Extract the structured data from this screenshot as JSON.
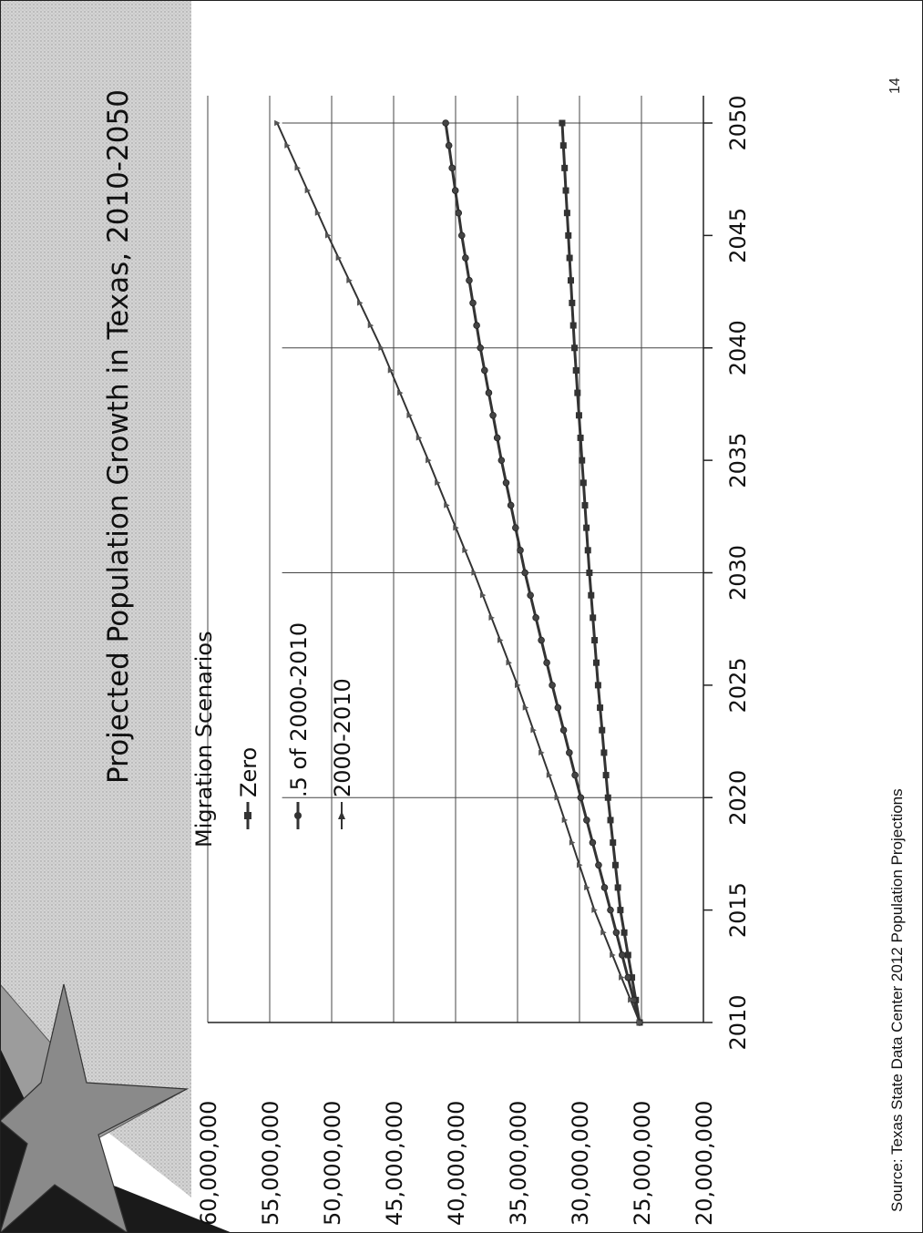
{
  "slide": {
    "title": "Projected Population Growth in Texas, 2010-2050",
    "source": "Source: Texas State Data Center 2012 Population Projections",
    "page_number": "14"
  },
  "colors": {
    "background": "#ffffff",
    "star_dark": "#1a1a1a",
    "grid": "#444444",
    "series": "#333333"
  },
  "chart_data": {
    "type": "line",
    "title": "Projected Population Growth in Texas, 2010-2050",
    "xlabel": "",
    "ylabel": "",
    "x": [
      2010,
      2015,
      2020,
      2025,
      2030,
      2035,
      2040,
      2045,
      2050
    ],
    "x_ticks": [
      "2010",
      "2015",
      "2020",
      "2025",
      "2030",
      "2035",
      "2040",
      "2045",
      "2050"
    ],
    "y_ticks": [
      "20,000,000",
      "25,000,000",
      "30,000,000",
      "35,000,000",
      "40,000,000",
      "45,000,000",
      "50,000,000",
      "55,000,000",
      "60,000,000"
    ],
    "ylim": [
      20000000,
      60000000
    ],
    "xlim": [
      2010,
      2050
    ],
    "legend_title": "Migration Scenarios",
    "legend_position": "top-left",
    "grid": true,
    "series": [
      {
        "name": "Zero",
        "marker": "square",
        "values": [
          25145561,
          26700000,
          27700000,
          28500000,
          29200000,
          29800000,
          30400000,
          30900000,
          31400000
        ]
      },
      {
        "name": ".5 of 2000-2010",
        "marker": "circle",
        "values": [
          25145561,
          27500000,
          29900000,
          32200000,
          34400000,
          36300000,
          38000000,
          39500000,
          40800000
        ]
      },
      {
        "name": "2000-2010",
        "marker": "triangle",
        "values": [
          25145561,
          28800000,
          31800000,
          35000000,
          38500000,
          42200000,
          46000000,
          50300000,
          54400000
        ]
      }
    ]
  }
}
